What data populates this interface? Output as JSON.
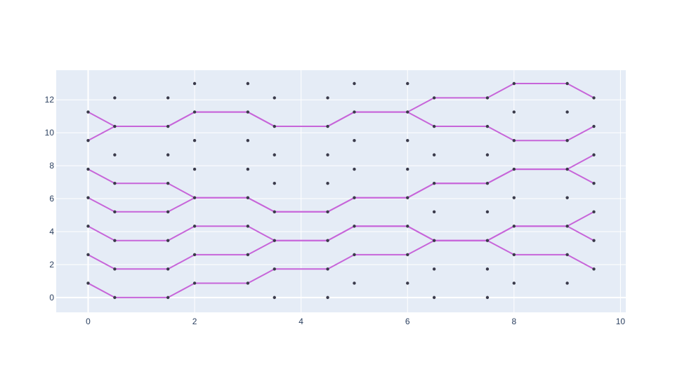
{
  "chart_data": {
    "type": "scatter",
    "xlim": [
      -0.6,
      10.1
    ],
    "ylim": [
      -0.9,
      13.8
    ],
    "x_ticks": [
      0,
      2,
      4,
      6,
      8,
      10
    ],
    "y_ticks": [
      0,
      2,
      4,
      6,
      8,
      10,
      12
    ],
    "grid": true,
    "legend": "none",
    "colors": {
      "plot_background": "#e5ecf6",
      "grid": "#ffffff",
      "line": "#c765d9",
      "point": "#3a3a4a",
      "tick_text": "#2a3f5f"
    },
    "points": [
      [
        0,
        0.87
      ],
      [
        0,
        2.6
      ],
      [
        0,
        4.33
      ],
      [
        0,
        6.06
      ],
      [
        0,
        7.79
      ],
      [
        0,
        9.53
      ],
      [
        0,
        11.26
      ],
      [
        0.5,
        0
      ],
      [
        0.5,
        1.73
      ],
      [
        0.5,
        3.46
      ],
      [
        0.5,
        5.2
      ],
      [
        0.5,
        6.93
      ],
      [
        0.5,
        8.66
      ],
      [
        0.5,
        10.39
      ],
      [
        0.5,
        12.12
      ],
      [
        1.5,
        0
      ],
      [
        1.5,
        1.73
      ],
      [
        1.5,
        3.46
      ],
      [
        1.5,
        5.2
      ],
      [
        1.5,
        6.93
      ],
      [
        1.5,
        8.66
      ],
      [
        1.5,
        10.39
      ],
      [
        1.5,
        12.12
      ],
      [
        2,
        0.87
      ],
      [
        2,
        2.6
      ],
      [
        2,
        4.33
      ],
      [
        2,
        6.06
      ],
      [
        2,
        7.79
      ],
      [
        2,
        9.53
      ],
      [
        2,
        11.26
      ],
      [
        2,
        12.99
      ],
      [
        3,
        0.87
      ],
      [
        3,
        2.6
      ],
      [
        3,
        4.33
      ],
      [
        3,
        6.06
      ],
      [
        3,
        7.79
      ],
      [
        3,
        9.53
      ],
      [
        3,
        11.26
      ],
      [
        3,
        12.99
      ],
      [
        3.5,
        0
      ],
      [
        3.5,
        1.73
      ],
      [
        3.5,
        3.46
      ],
      [
        3.5,
        5.2
      ],
      [
        3.5,
        6.93
      ],
      [
        3.5,
        8.66
      ],
      [
        3.5,
        10.39
      ],
      [
        3.5,
        12.12
      ],
      [
        4.5,
        0
      ],
      [
        4.5,
        1.73
      ],
      [
        4.5,
        3.46
      ],
      [
        4.5,
        5.2
      ],
      [
        4.5,
        6.93
      ],
      [
        4.5,
        8.66
      ],
      [
        4.5,
        10.39
      ],
      [
        4.5,
        12.12
      ],
      [
        5,
        0.87
      ],
      [
        5,
        2.6
      ],
      [
        5,
        4.33
      ],
      [
        5,
        6.06
      ],
      [
        5,
        7.79
      ],
      [
        5,
        9.53
      ],
      [
        5,
        11.26
      ],
      [
        5,
        12.99
      ],
      [
        6,
        0.87
      ],
      [
        6,
        2.6
      ],
      [
        6,
        4.33
      ],
      [
        6,
        6.06
      ],
      [
        6,
        7.79
      ],
      [
        6,
        9.53
      ],
      [
        6,
        11.26
      ],
      [
        6,
        12.99
      ],
      [
        6.5,
        0
      ],
      [
        6.5,
        1.73
      ],
      [
        6.5,
        3.46
      ],
      [
        6.5,
        5.2
      ],
      [
        6.5,
        6.93
      ],
      [
        6.5,
        8.66
      ],
      [
        6.5,
        10.39
      ],
      [
        6.5,
        12.12
      ],
      [
        7.5,
        0
      ],
      [
        7.5,
        1.73
      ],
      [
        7.5,
        3.46
      ],
      [
        7.5,
        5.2
      ],
      [
        7.5,
        6.93
      ],
      [
        7.5,
        8.66
      ],
      [
        7.5,
        10.39
      ],
      [
        7.5,
        12.12
      ],
      [
        8,
        0.87
      ],
      [
        8,
        2.6
      ],
      [
        8,
        4.33
      ],
      [
        8,
        6.06
      ],
      [
        8,
        7.79
      ],
      [
        8,
        9.53
      ],
      [
        8,
        11.26
      ],
      [
        8,
        12.99
      ],
      [
        9,
        0.87
      ],
      [
        9,
        2.6
      ],
      [
        9,
        4.33
      ],
      [
        9,
        6.06
      ],
      [
        9,
        7.79
      ],
      [
        9,
        9.53
      ],
      [
        9,
        11.26
      ],
      [
        9,
        12.99
      ],
      [
        9.5,
        1.73
      ],
      [
        9.5,
        3.46
      ],
      [
        9.5,
        5.2
      ],
      [
        9.5,
        6.93
      ],
      [
        9.5,
        8.66
      ],
      [
        9.5,
        10.39
      ],
      [
        9.5,
        12.12
      ]
    ],
    "paths": [
      [
        [
          0,
          0.87
        ],
        [
          0.5,
          0
        ],
        [
          1.5,
          0
        ],
        [
          2,
          0.87
        ],
        [
          3,
          0.87
        ],
        [
          3.5,
          1.73
        ],
        [
          4.5,
          1.73
        ],
        [
          5,
          2.6
        ],
        [
          6,
          2.6
        ],
        [
          6.5,
          3.46
        ],
        [
          7.5,
          3.46
        ],
        [
          8,
          2.6
        ],
        [
          9,
          2.6
        ],
        [
          9.5,
          1.73
        ]
      ],
      [
        [
          0,
          2.6
        ],
        [
          0.5,
          1.73
        ],
        [
          1.5,
          1.73
        ],
        [
          2,
          2.6
        ],
        [
          3,
          2.6
        ],
        [
          3.5,
          3.46
        ],
        [
          4.5,
          3.46
        ],
        [
          5,
          4.33
        ],
        [
          6,
          4.33
        ],
        [
          6.5,
          3.46
        ],
        [
          7.5,
          3.46
        ],
        [
          8,
          4.33
        ],
        [
          9,
          4.33
        ],
        [
          9.5,
          3.46
        ]
      ],
      [
        [
          0,
          4.33
        ],
        [
          0.5,
          3.46
        ],
        [
          1.5,
          3.46
        ],
        [
          2,
          4.33
        ],
        [
          3,
          4.33
        ],
        [
          3.5,
          3.46
        ],
        [
          4.5,
          3.46
        ],
        [
          5,
          4.33
        ],
        [
          6,
          4.33
        ],
        [
          6.5,
          3.46
        ],
        [
          7.5,
          3.46
        ],
        [
          8,
          4.33
        ],
        [
          9,
          4.33
        ],
        [
          9.5,
          5.2
        ]
      ],
      [
        [
          0,
          6.06
        ],
        [
          0.5,
          5.2
        ],
        [
          1.5,
          5.2
        ],
        [
          2,
          6.06
        ],
        [
          3,
          6.06
        ],
        [
          3.5,
          5.2
        ],
        [
          4.5,
          5.2
        ],
        [
          5,
          6.06
        ],
        [
          6,
          6.06
        ],
        [
          6.5,
          6.93
        ],
        [
          7.5,
          6.93
        ],
        [
          8,
          7.79
        ],
        [
          9,
          7.79
        ],
        [
          9.5,
          6.93
        ]
      ],
      [
        [
          0,
          7.79
        ],
        [
          0.5,
          6.93
        ],
        [
          1.5,
          6.93
        ],
        [
          2,
          6.06
        ],
        [
          3,
          6.06
        ],
        [
          3.5,
          5.2
        ],
        [
          4.5,
          5.2
        ],
        [
          5,
          6.06
        ],
        [
          6,
          6.06
        ],
        [
          6.5,
          6.93
        ],
        [
          7.5,
          6.93
        ],
        [
          8,
          7.79
        ],
        [
          9,
          7.79
        ],
        [
          9.5,
          8.66
        ]
      ],
      [
        [
          0,
          9.53
        ],
        [
          0.5,
          10.39
        ],
        [
          1.5,
          10.39
        ],
        [
          2,
          11.26
        ],
        [
          3,
          11.26
        ],
        [
          3.5,
          10.39
        ],
        [
          4.5,
          10.39
        ],
        [
          5,
          11.26
        ],
        [
          6,
          11.26
        ],
        [
          6.5,
          10.39
        ],
        [
          7.5,
          10.39
        ],
        [
          8,
          9.53
        ],
        [
          9,
          9.53
        ],
        [
          9.5,
          10.39
        ]
      ],
      [
        [
          0,
          11.26
        ],
        [
          0.5,
          10.39
        ],
        [
          1.5,
          10.39
        ],
        [
          2,
          11.26
        ],
        [
          3,
          11.26
        ],
        [
          3.5,
          10.39
        ],
        [
          4.5,
          10.39
        ],
        [
          5,
          11.26
        ],
        [
          6,
          11.26
        ],
        [
          6.5,
          12.12
        ],
        [
          7.5,
          12.12
        ],
        [
          8,
          12.99
        ],
        [
          9,
          12.99
        ],
        [
          9.5,
          12.12
        ]
      ]
    ]
  }
}
